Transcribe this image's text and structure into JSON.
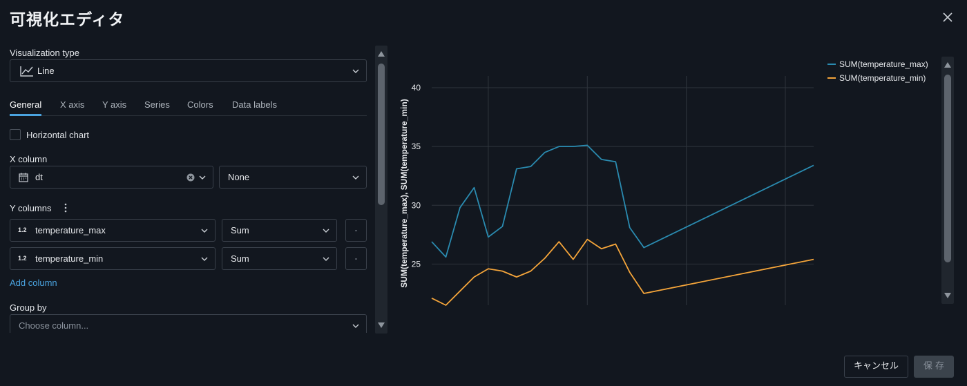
{
  "dialog": {
    "title": "可視化エディタ"
  },
  "viz_type": {
    "label": "Visualization type",
    "value": "Line"
  },
  "tabs": [
    {
      "label": "General",
      "active": true
    },
    {
      "label": "X axis",
      "active": false
    },
    {
      "label": "Y axis",
      "active": false
    },
    {
      "label": "Series",
      "active": false
    },
    {
      "label": "Colors",
      "active": false
    },
    {
      "label": "Data labels",
      "active": false
    }
  ],
  "horizontal_chart": {
    "label": "Horizontal chart",
    "checked": false
  },
  "x_column": {
    "label": "X column",
    "value": "dt",
    "scale": "None"
  },
  "y_columns": {
    "label": "Y columns",
    "items": [
      {
        "type_badge": "1.2",
        "column": "temperature_max",
        "agg": "Sum",
        "remove": "-"
      },
      {
        "type_badge": "1.2",
        "column": "temperature_min",
        "agg": "Sum",
        "remove": "-"
      }
    ],
    "add_label": "Add column"
  },
  "group_by": {
    "label": "Group by",
    "placeholder": "Choose column..."
  },
  "buttons": {
    "cancel": "キャンセル",
    "save": "保 存"
  },
  "colors": {
    "series_max": "#2a8bb0",
    "series_min": "#f5a53a",
    "accent": "#4aa3df"
  },
  "chart_data": {
    "type": "line",
    "ylabel": "SUM(temperature_max), SUM(temperature_min)",
    "xlabel": "",
    "ylim": [
      21.5,
      41
    ],
    "yticks": [
      25,
      30,
      35,
      40
    ],
    "grid": true,
    "legend_position": "top-right",
    "x": [
      0,
      1,
      2,
      3,
      4,
      5,
      6,
      7,
      8,
      9,
      10,
      11,
      12,
      13,
      14,
      15,
      27
    ],
    "series": [
      {
        "name": "SUM(temperature_max)",
        "color": "#2a8bb0",
        "values": [
          26.9,
          25.6,
          29.8,
          31.5,
          27.3,
          28.2,
          33.1,
          33.3,
          34.5,
          35.0,
          35.0,
          35.1,
          33.9,
          33.7,
          28.1,
          26.4,
          33.4
        ]
      },
      {
        "name": "SUM(temperature_min)",
        "color": "#f5a53a",
        "values": [
          22.1,
          21.5,
          22.7,
          23.9,
          24.6,
          24.4,
          23.9,
          24.4,
          25.5,
          26.9,
          25.4,
          27.1,
          26.3,
          26.7,
          24.3,
          22.5,
          25.4
        ]
      }
    ]
  }
}
